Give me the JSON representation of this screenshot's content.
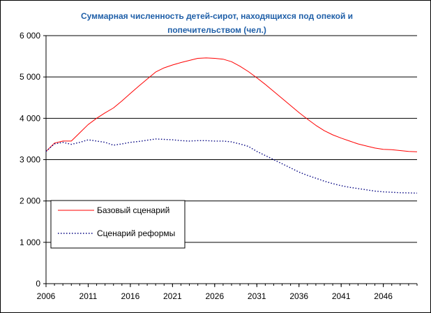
{
  "chart_data": {
    "type": "line",
    "title_line1": "Суммарная численность детей-сирот, находящихся под опекой и",
    "title_line2": "попечительством (чел.)",
    "xlabel": "",
    "ylabel": "",
    "xlim": [
      2006,
      2050
    ],
    "ylim": [
      0,
      6000
    ],
    "y_ticks": [
      0,
      1000,
      2000,
      3000,
      4000,
      5000,
      6000
    ],
    "y_tick_labels": [
      "0",
      "1 000",
      "2 000",
      "3 000",
      "4 000",
      "5 000",
      "6 000"
    ],
    "x_ticks": [
      2006,
      2011,
      2016,
      2021,
      2026,
      2031,
      2036,
      2041,
      2046
    ],
    "x_tick_labels": [
      "2006",
      "2011",
      "2016",
      "2021",
      "2026",
      "2031",
      "2036",
      "2041",
      "2046"
    ],
    "grid": "horizontal",
    "legend_position": "bottom-left",
    "x": [
      2006,
      2007,
      2008,
      2009,
      2010,
      2011,
      2012,
      2013,
      2014,
      2015,
      2016,
      2017,
      2018,
      2019,
      2020,
      2021,
      2022,
      2023,
      2024,
      2025,
      2026,
      2027,
      2028,
      2029,
      2030,
      2031,
      2032,
      2033,
      2034,
      2035,
      2036,
      2037,
      2038,
      2039,
      2040,
      2041,
      2042,
      2043,
      2044,
      2045,
      2046,
      2047,
      2048,
      2049,
      2050
    ],
    "series": [
      {
        "name": "Базовый сценарий",
        "color": "#ff0000",
        "style": "solid",
        "values": [
          3200,
          3400,
          3450,
          3450,
          3650,
          3850,
          4000,
          4130,
          4250,
          4420,
          4600,
          4780,
          4950,
          5120,
          5220,
          5290,
          5350,
          5400,
          5450,
          5460,
          5450,
          5430,
          5370,
          5260,
          5130,
          4980,
          4820,
          4650,
          4480,
          4310,
          4140,
          3980,
          3830,
          3700,
          3600,
          3520,
          3450,
          3380,
          3330,
          3280,
          3250,
          3240,
          3220,
          3200,
          3190
        ]
      },
      {
        "name": "Сценарий реформы",
        "color": "#000080",
        "style": "dotted",
        "values": [
          3200,
          3380,
          3420,
          3370,
          3420,
          3480,
          3450,
          3420,
          3350,
          3380,
          3420,
          3440,
          3470,
          3500,
          3490,
          3480,
          3460,
          3450,
          3460,
          3460,
          3450,
          3450,
          3430,
          3380,
          3320,
          3200,
          3100,
          3000,
          2900,
          2800,
          2700,
          2620,
          2550,
          2480,
          2420,
          2370,
          2330,
          2300,
          2270,
          2240,
          2220,
          2210,
          2200,
          2195,
          2190
        ]
      }
    ]
  }
}
